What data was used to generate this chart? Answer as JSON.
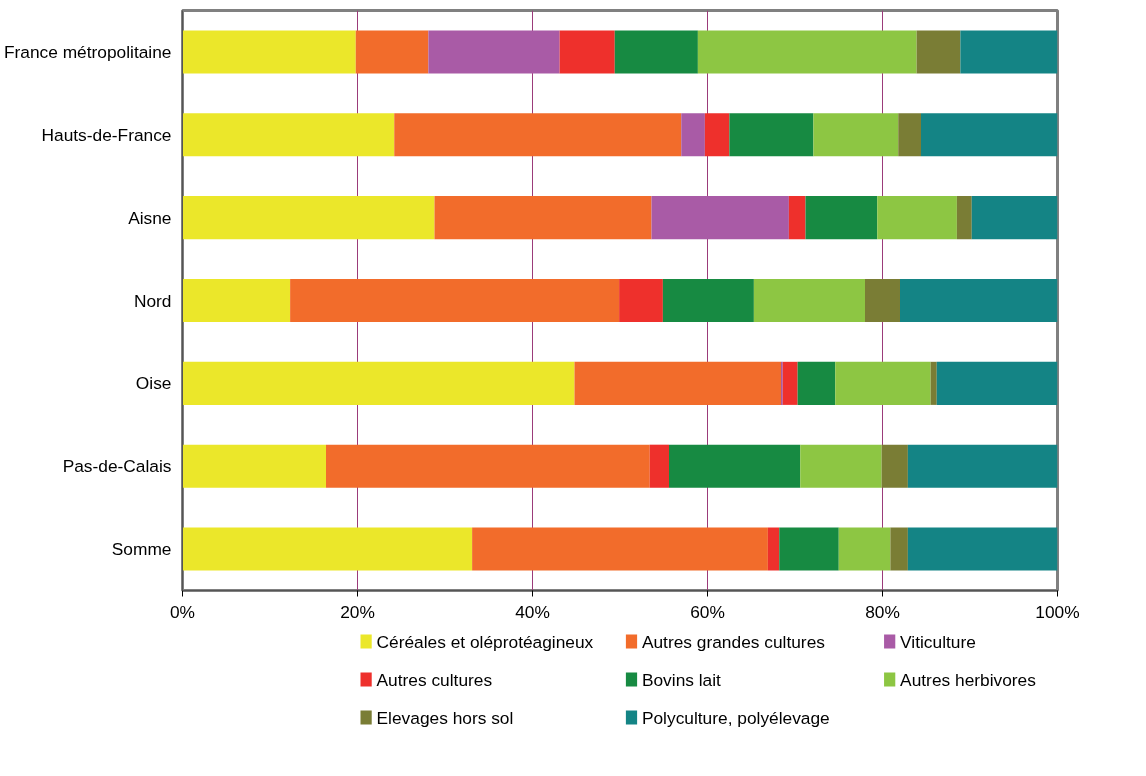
{
  "chart_data": {
    "type": "bar",
    "orientation": "horizontal",
    "stacked": true,
    "categories": [
      "France métropolitaine",
      "Hauts-de-France",
      "Aisne",
      "Nord",
      "Oise",
      "Pas-de-Calais",
      "Somme"
    ],
    "series": [
      {
        "name": "Céréales et oléprotéagineux",
        "color": "#ebe72a",
        "values": [
          19.8,
          24.2,
          28.8,
          12.3,
          44.8,
          16.4,
          33.1
        ]
      },
      {
        "name": "Autres grandes cultures",
        "color": "#f26c2b",
        "values": [
          8.3,
          32.8,
          24.8,
          37.6,
          23.6,
          37.0,
          33.8
        ]
      },
      {
        "name": "Viticulture",
        "color": "#a95ba6",
        "values": [
          15.0,
          2.7,
          15.7,
          0,
          0.2,
          0,
          0
        ]
      },
      {
        "name": "Autres cultures",
        "color": "#ee302c",
        "values": [
          6.3,
          2.8,
          1.9,
          5.0,
          1.7,
          2.2,
          1.3
        ]
      },
      {
        "name": "Bovins lait",
        "color": "#178a42",
        "values": [
          9.5,
          9.6,
          8.2,
          10.4,
          4.3,
          15.0,
          6.8
        ]
      },
      {
        "name": "Autres herbivores",
        "color": "#8dc643",
        "values": [
          25.0,
          9.7,
          9.1,
          12.7,
          10.9,
          9.3,
          5.9
        ]
      },
      {
        "name": "Elevages hors sol",
        "color": "#7a7d35",
        "values": [
          5.0,
          2.6,
          1.7,
          4.0,
          0.7,
          3.0,
          2.0
        ]
      },
      {
        "name": "Polyculture, polyélevage",
        "color": "#148485",
        "values": [
          11.1,
          15.6,
          9.8,
          18.0,
          13.8,
          17.1,
          17.1
        ]
      }
    ],
    "xlim": [
      0,
      100
    ],
    "xticks": [
      {
        "value": 0,
        "label": "0%"
      },
      {
        "value": 20,
        "label": "20%"
      },
      {
        "value": 40,
        "label": "40%"
      },
      {
        "value": 60,
        "label": "60%"
      },
      {
        "value": 80,
        "label": "80%"
      },
      {
        "value": 100,
        "label": "100%"
      }
    ],
    "grid": "x",
    "legend": "bottom"
  }
}
